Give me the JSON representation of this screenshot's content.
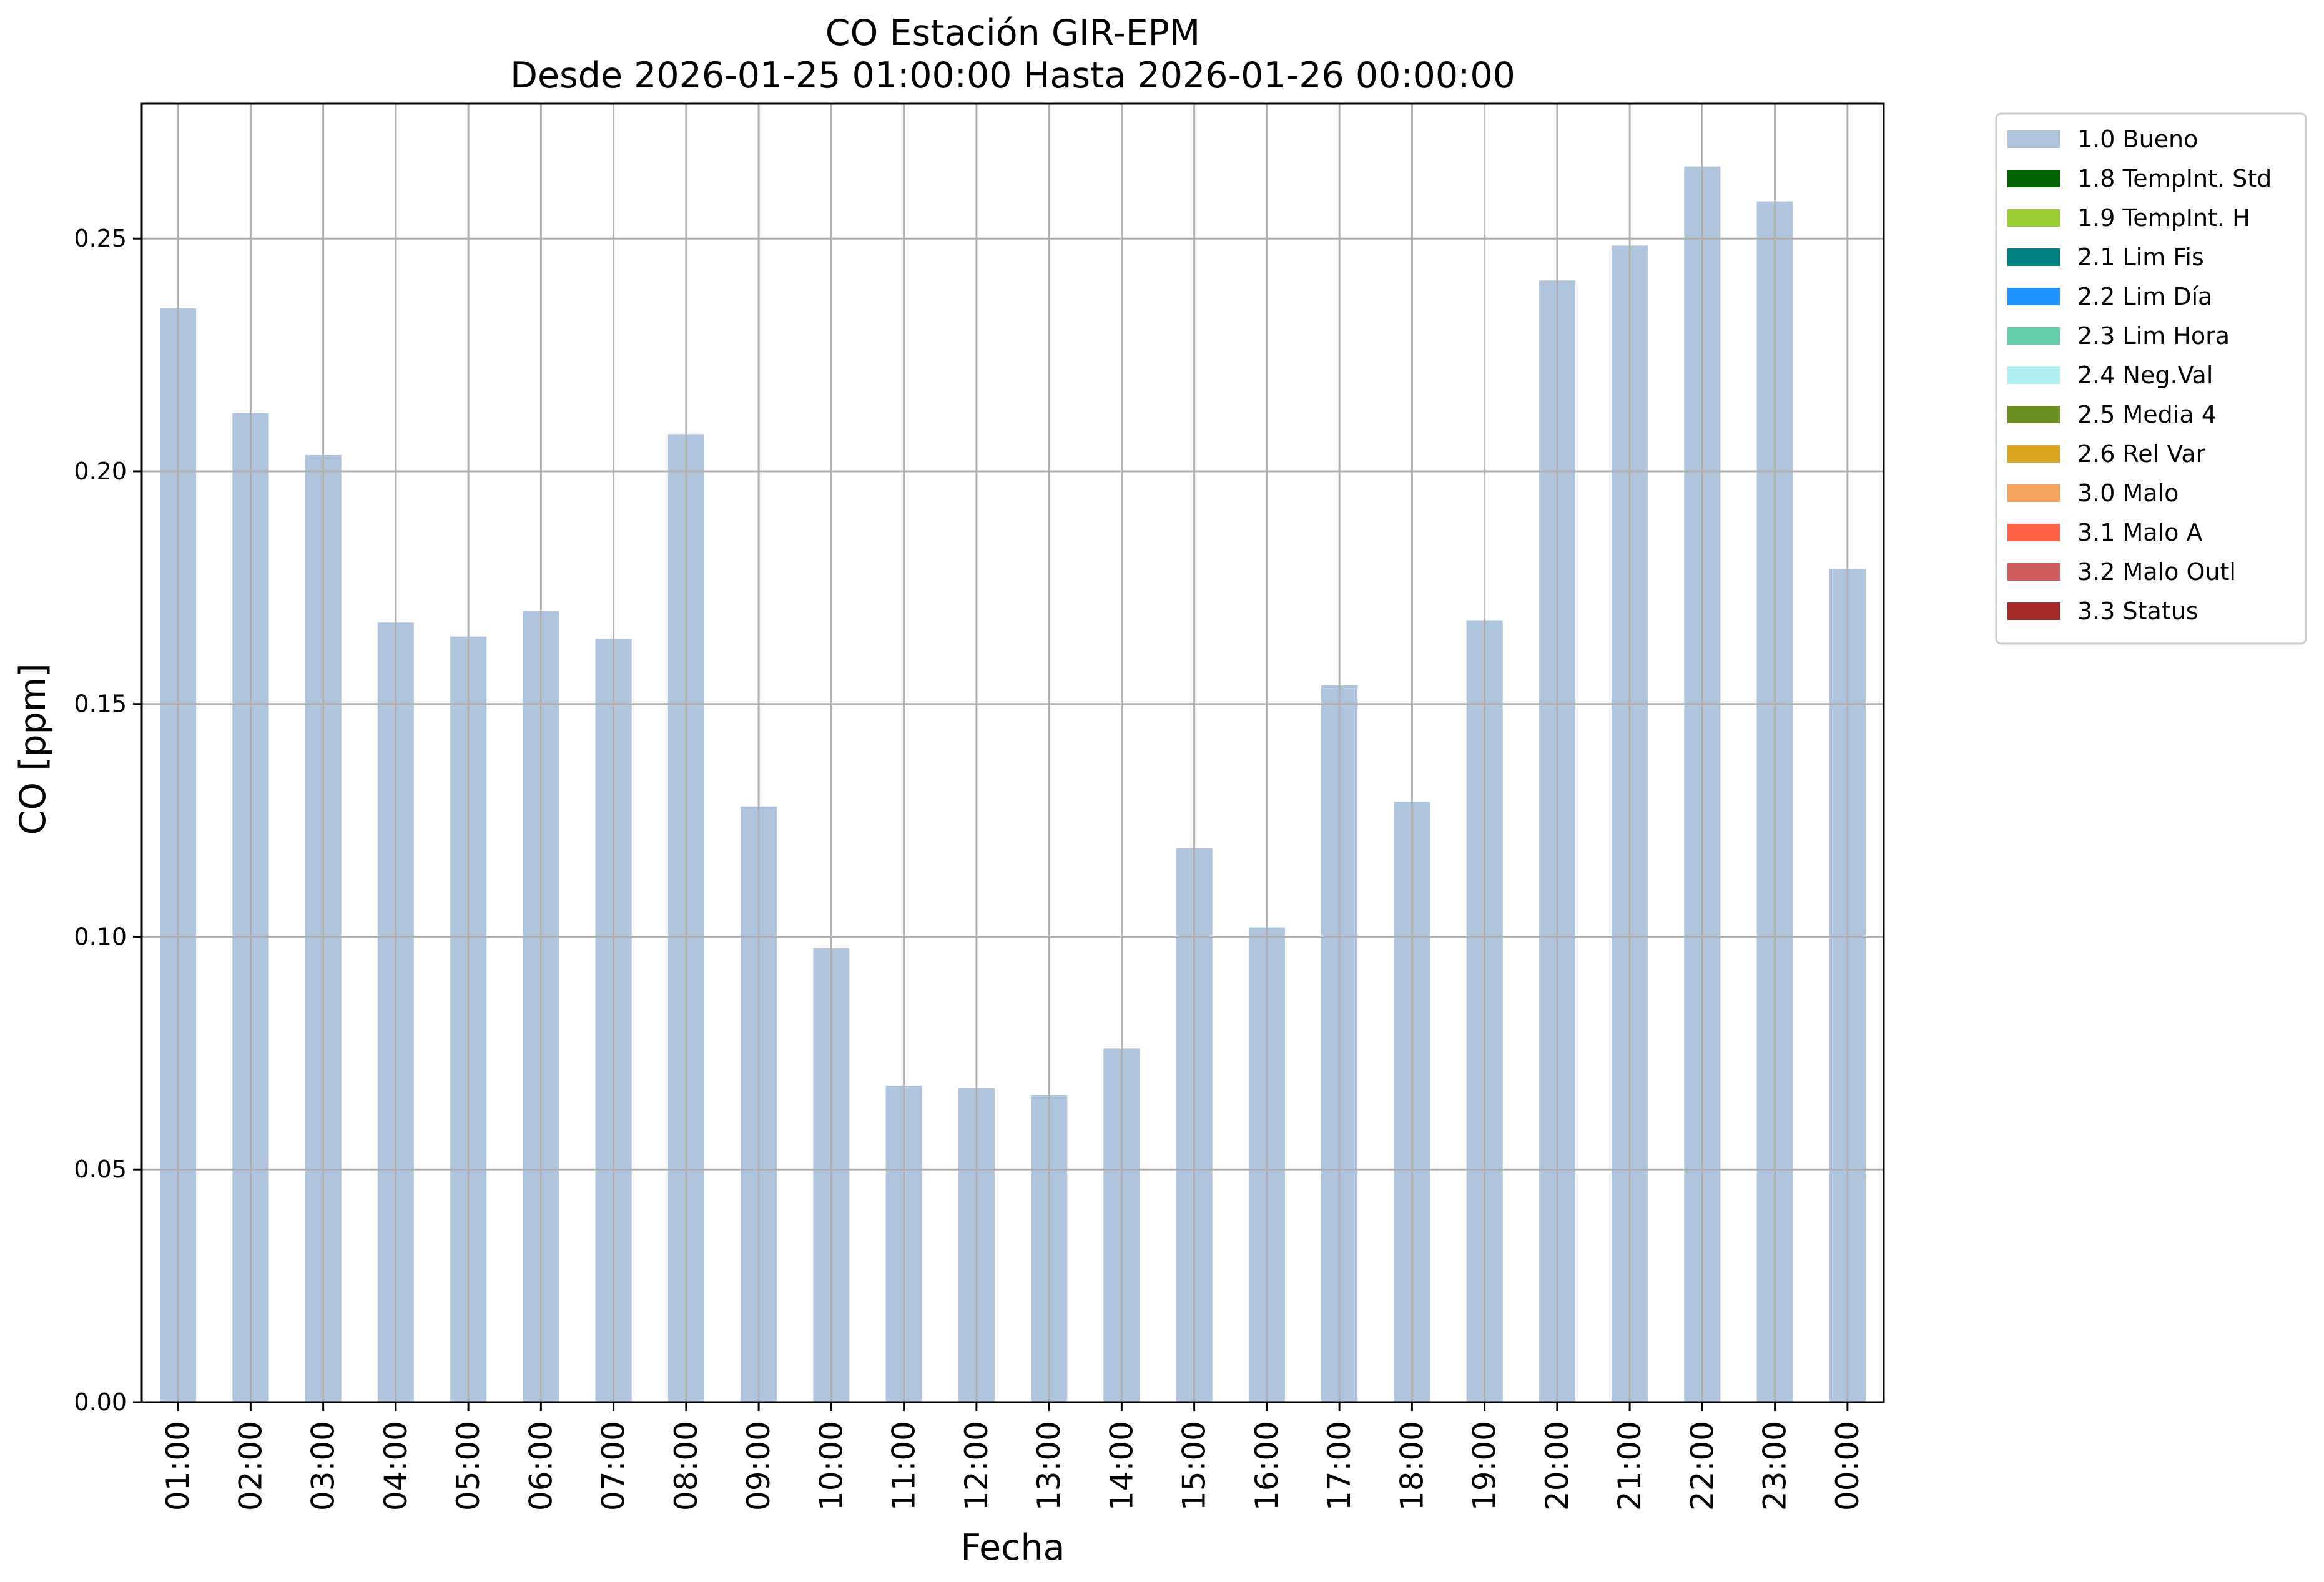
{
  "chart_data": {
    "type": "bar",
    "title": "CO Estación GIR-EPM",
    "subtitle": "Desde 2026-01-25 01:00:00 Hasta 2026-01-26 00:00:00",
    "xlabel": "Fecha",
    "ylabel": "CO [ppm]",
    "ylim": [
      0,
      0.279
    ],
    "yticks": [
      "0.00",
      "0.05",
      "0.10",
      "0.15",
      "0.20",
      "0.25"
    ],
    "grid": true,
    "legend_position": "outside-top-right",
    "categories": [
      "01:00",
      "02:00",
      "03:00",
      "04:00",
      "05:00",
      "06:00",
      "07:00",
      "08:00",
      "09:00",
      "10:00",
      "11:00",
      "12:00",
      "13:00",
      "14:00",
      "15:00",
      "16:00",
      "17:00",
      "18:00",
      "19:00",
      "20:00",
      "21:00",
      "22:00",
      "23:00",
      "00:00"
    ],
    "series": [
      {
        "name": "1.0 Bueno",
        "color": "#b0c4de",
        "values": [
          0.235,
          0.2125,
          0.2035,
          0.1675,
          0.1645,
          0.17,
          0.164,
          0.208,
          0.128,
          0.0975,
          0.068,
          0.0675,
          0.066,
          0.076,
          0.119,
          0.102,
          0.154,
          0.129,
          0.168,
          0.241,
          0.2485,
          0.2655,
          0.258,
          0.179
        ]
      }
    ],
    "legend": [
      {
        "label": "1.0 Bueno",
        "color": "#b0c4de"
      },
      {
        "label": "1.8 TempInt. Std",
        "color": "#006400"
      },
      {
        "label": "1.9 TempInt. H",
        "color": "#9acd32"
      },
      {
        "label": "2.1 Lim Fis",
        "color": "#008080"
      },
      {
        "label": "2.2 Lim Día",
        "color": "#1e90ff"
      },
      {
        "label": "2.3 Lim Hora",
        "color": "#66cdaa"
      },
      {
        "label": "2.4 Neg.Val",
        "color": "#afeeee"
      },
      {
        "label": "2.5 Media 4",
        "color": "#6b8e23"
      },
      {
        "label": "2.6 Rel Var",
        "color": "#daa520"
      },
      {
        "label": "3.0 Malo",
        "color": "#f4a460"
      },
      {
        "label": "3.1 Malo A",
        "color": "#ff6347"
      },
      {
        "label": "3.2 Malo Outl",
        "color": "#cd5c5c"
      },
      {
        "label": "3.3 Status",
        "color": "#a52a2a"
      }
    ]
  }
}
